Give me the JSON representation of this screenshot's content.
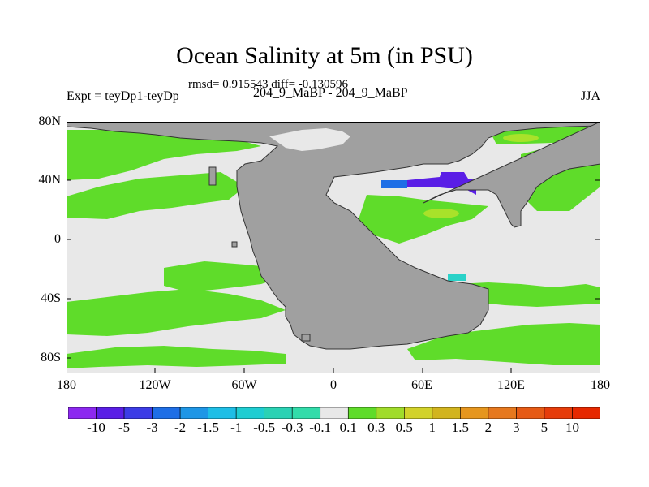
{
  "title": "Ocean Salinity at 5m (in PSU)",
  "stats": "rmsd= 0.915543 diff= -0.130596",
  "experiment": "Expt = teyDp1-teyDp",
  "period": "204_9_MaBP - 204_9_MaBP",
  "season": "JJA",
  "map": {
    "lat_ticks": [
      "80N",
      "40N",
      "0",
      "40S",
      "80S"
    ],
    "lon_ticks": [
      "180",
      "120W",
      "60W",
      "0",
      "60E",
      "120E",
      "180"
    ],
    "colors": {
      "land": "#a0a0a0",
      "near_zero": "#e8e8e8",
      "positive_small": "#5fdc2a",
      "positive_mid": "#a8e22a",
      "negative_large": "#5a1ee6",
      "negative_mid": "#1e6ee6",
      "negative_small": "#2ad2c8"
    }
  },
  "colorbar": {
    "labels": [
      "-10",
      "-5",
      "-3",
      "-2",
      "-1.5",
      "-1",
      "-0.5",
      "-0.3",
      "-0.1",
      "0.1",
      "0.3",
      "0.5",
      "1",
      "1.5",
      "2",
      "3",
      "5",
      "10"
    ],
    "colors": [
      "#8c28f0",
      "#5a1ee6",
      "#3c3ce6",
      "#1e6ee6",
      "#1e96e6",
      "#1ebee6",
      "#1ecdd2",
      "#2ad2b4",
      "#32dcaa",
      "#e8e8e8",
      "#5fdc2a",
      "#a0dc2a",
      "#d2d22a",
      "#d2b41e",
      "#e6961e",
      "#e6781e",
      "#e65a14",
      "#e63c0a",
      "#e62800"
    ]
  }
}
